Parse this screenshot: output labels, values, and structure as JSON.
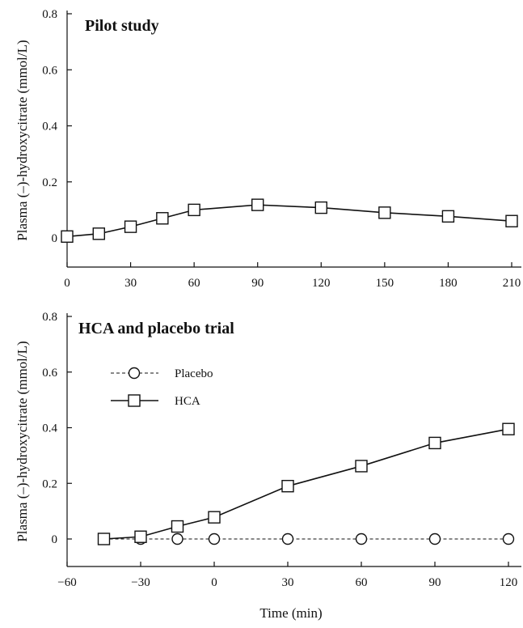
{
  "chart_data": [
    {
      "type": "line",
      "title": "Pilot study",
      "xlabel": "",
      "ylabel": "Plasma (–)-hydroxycitrate (mmol/L)",
      "xlim": [
        0,
        210
      ],
      "ylim": [
        0,
        0.8
      ],
      "xticks": [
        "0",
        "30",
        "60",
        "90",
        "120",
        "150",
        "180",
        "210"
      ],
      "yticks": [
        "0",
        "0.2",
        "0.4",
        "0.6",
        "0.8"
      ],
      "series": [
        {
          "marker": "square",
          "line": "solid",
          "x": [
            0,
            15,
            30,
            45,
            60,
            90,
            120,
            150,
            180,
            210
          ],
          "y": [
            0.005,
            0.015,
            0.04,
            0.07,
            0.1,
            0.118,
            0.108,
            0.09,
            0.077,
            0.06
          ]
        }
      ]
    },
    {
      "type": "line",
      "title": "HCA and placebo trial",
      "xlabel": "Time (min)",
      "ylabel": "Plasma (–)-hydroxycitrate (mmol/L)",
      "xlim": [
        -60,
        120
      ],
      "ylim": [
        0,
        0.8
      ],
      "xticks": [
        "−60",
        "−30",
        "0",
        "30",
        "60",
        "90",
        "120"
      ],
      "yticks": [
        "0",
        "0.2",
        "0.4",
        "0.6",
        "0.8"
      ],
      "legend": "upper-left",
      "series": [
        {
          "name": "Placebo",
          "marker": "circle",
          "line": "dashed",
          "x": [
            -45,
            -30,
            -15,
            0,
            30,
            60,
            90,
            120
          ],
          "y": [
            0,
            0,
            0,
            0,
            0,
            0,
            0,
            0
          ]
        },
        {
          "name": "HCA",
          "marker": "square",
          "line": "solid",
          "x": [
            -45,
            -30,
            -15,
            0,
            30,
            60,
            90,
            120
          ],
          "y": [
            0,
            0.008,
            0.045,
            0.078,
            0.19,
            0.262,
            0.345,
            0.395
          ]
        }
      ]
    }
  ]
}
